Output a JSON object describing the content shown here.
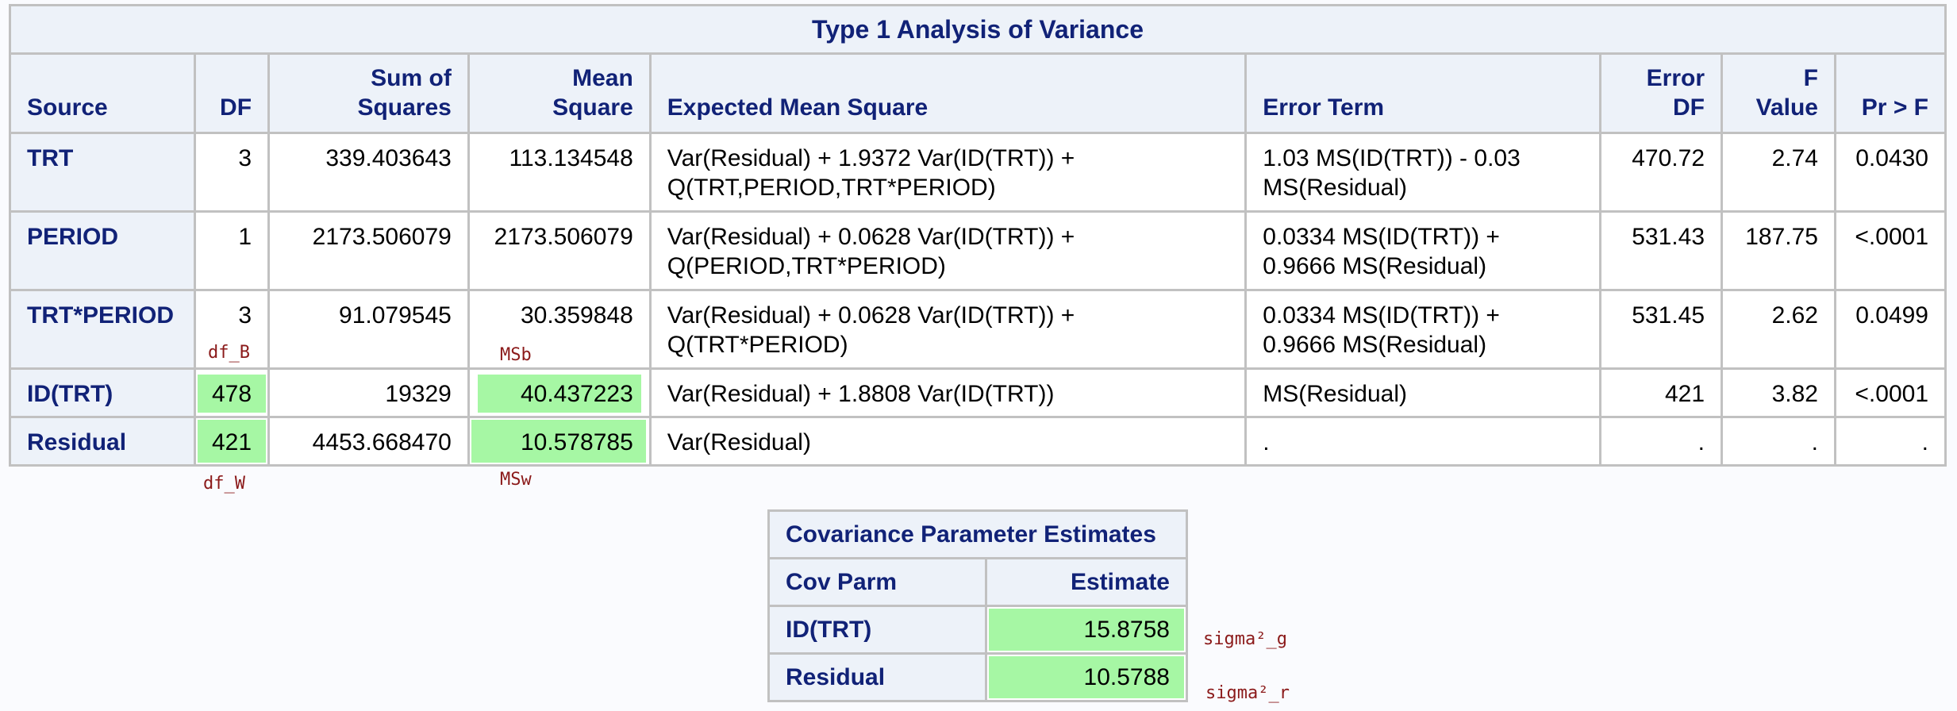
{
  "anova": {
    "title": "Type 1 Analysis of Variance",
    "headers": {
      "source": "Source",
      "df": "DF",
      "ss_1": "Sum of",
      "ss_2": "Squares",
      "ms_1": "Mean",
      "ms_2": "Square",
      "ems": "Expected Mean Square",
      "error_term": "Error Term",
      "errdf_1": "Error",
      "errdf_2": "DF",
      "f_1": "F",
      "f_2": "Value",
      "p": "Pr > F"
    },
    "rows": [
      {
        "source": "TRT",
        "df": "3",
        "ss": "339.403643",
        "ms": "113.134548",
        "ems_1": "Var(Residual) + 1.9372 Var(ID(TRT)) +",
        "ems_2": "Q(TRT,PERIOD,TRT*PERIOD)",
        "err_1": "1.03 MS(ID(TRT)) - 0.03",
        "err_2": "MS(Residual)",
        "error_df": "470.72",
        "f": "2.74",
        "p": "0.0430"
      },
      {
        "source": "PERIOD",
        "df": "1",
        "ss": "2173.506079",
        "ms": "2173.506079",
        "ems_1": "Var(Residual) + 0.0628 Var(ID(TRT)) +",
        "ems_2": "Q(PERIOD,TRT*PERIOD)",
        "err_1": "0.0334 MS(ID(TRT)) +",
        "err_2": "0.9666 MS(Residual)",
        "error_df": "531.43",
        "f": "187.75",
        "p": "<.0001"
      },
      {
        "source": "TRT*PERIOD",
        "df": "3",
        "ss": "91.079545",
        "ms": "30.359848",
        "ems_1": "Var(Residual) + 0.0628 Var(ID(TRT)) +",
        "ems_2": "Q(TRT*PERIOD)",
        "err_1": "0.0334 MS(ID(TRT)) +",
        "err_2": "0.9666 MS(Residual)",
        "error_df": "531.45",
        "f": "2.62",
        "p": "0.0499"
      },
      {
        "source": "ID(TRT)",
        "df": "478",
        "ss": "19329",
        "ms": "40.437223",
        "ems_1": "Var(Residual) + 1.8808 Var(ID(TRT))",
        "err_1": "MS(Residual)",
        "error_df": "421",
        "f": "3.82",
        "p": "<.0001"
      },
      {
        "source": "Residual",
        "df": "421",
        "ss": "4453.668470",
        "ms": "10.578785",
        "ems_1": "Var(Residual)",
        "err_1": ".",
        "error_df": ".",
        "f": ".",
        "p": "."
      }
    ]
  },
  "covariance": {
    "title": "Covariance Parameter Estimates",
    "headers": {
      "cov_parm": "Cov Parm",
      "estimate": "Estimate"
    },
    "rows": [
      {
        "cov_parm": "ID(TRT)",
        "estimate": "15.8758"
      },
      {
        "cov_parm": "Residual",
        "estimate": "10.5788"
      }
    ]
  },
  "annotations": {
    "df_b": "df_B",
    "df_w": "df_W",
    "msb": "MSb",
    "msw": "MSw",
    "sigma_g": "sigma²_g",
    "sigma_r": "sigma²_r"
  },
  "colors": {
    "header_text": "#112277",
    "header_bg": "#edf2f9",
    "highlight": "#a6f7a4",
    "annotation": "#8b1a1a"
  }
}
